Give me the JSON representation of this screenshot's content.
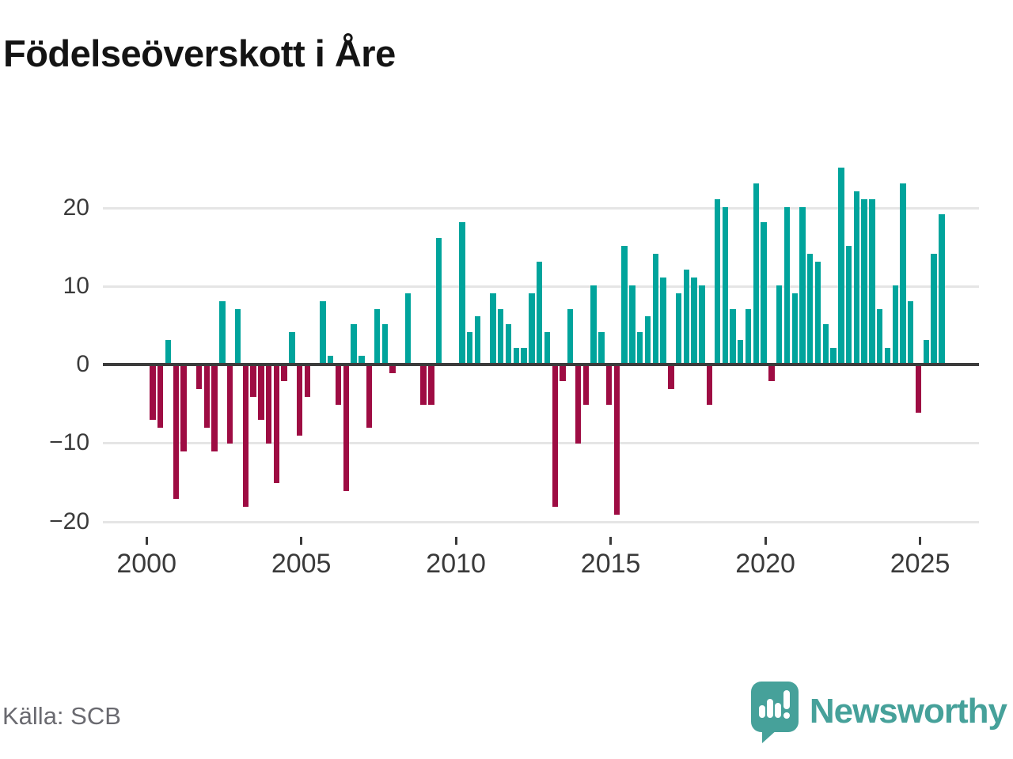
{
  "title": "Födelseöverskott i Åre",
  "source": {
    "text": "Källa: SCB"
  },
  "brand": {
    "name": "Newsworthy",
    "logo_icon": "speech-bubble-bar-chart-icon"
  },
  "colors": {
    "positive_bar": "#00A49C",
    "negative_bar": "#9E0C43",
    "zero_axis": "#3C3C3C",
    "gridline": "#E5E5E5",
    "tick_label": "#3A3A3A",
    "title_text": "#141414",
    "source_text": "#6A6A70",
    "brand_teal": "#46A19A"
  },
  "chart_data": {
    "type": "bar",
    "title": "Födelseöverskott i Åre",
    "xlabel": "",
    "ylabel": "",
    "period": "quarterly",
    "start_year": 2000,
    "start_quarter": 1,
    "end_label": "2025-Q3",
    "ylim": [
      -22,
      27
    ],
    "grid": "horizontal",
    "y_ticks": [
      {
        "value": 20,
        "label": "20"
      },
      {
        "value": 10,
        "label": "10"
      },
      {
        "value": 0,
        "label": "0"
      },
      {
        "value": -10,
        "label": "−10"
      },
      {
        "value": -20,
        "label": "−20"
      }
    ],
    "x_ticks": [
      {
        "year": 2000,
        "label": "2000"
      },
      {
        "year": 2005,
        "label": "2005"
      },
      {
        "year": 2010,
        "label": "2010"
      },
      {
        "year": 2015,
        "label": "2015"
      },
      {
        "year": 2020,
        "label": "2020"
      },
      {
        "year": 2025,
        "label": "2025"
      }
    ],
    "values": [
      -7,
      -8,
      3,
      -17,
      -11,
      0,
      -3,
      -8,
      -11,
      8,
      -10,
      7,
      -18,
      -4,
      -7,
      -10,
      -15,
      -2,
      4,
      -9,
      -4,
      0,
      8,
      1,
      -5,
      -16,
      5,
      1,
      -8,
      7,
      5,
      -1,
      0,
      9,
      0,
      -5,
      -5,
      16,
      0,
      0,
      18,
      4,
      6,
      0,
      9,
      7,
      5,
      2,
      2,
      9,
      13,
      4,
      -18,
      -2,
      7,
      -10,
      -5,
      10,
      4,
      -5,
      -19,
      15,
      10,
      4,
      6,
      14,
      11,
      -3,
      9,
      12,
      11,
      10,
      -5,
      21,
      20,
      7,
      3,
      7,
      23,
      18,
      -2,
      10,
      20,
      9,
      20,
      14,
      13,
      5,
      2,
      25,
      15,
      22,
      21,
      21,
      7,
      2,
      10,
      23,
      8,
      -6,
      3,
      14,
      19
    ]
  }
}
